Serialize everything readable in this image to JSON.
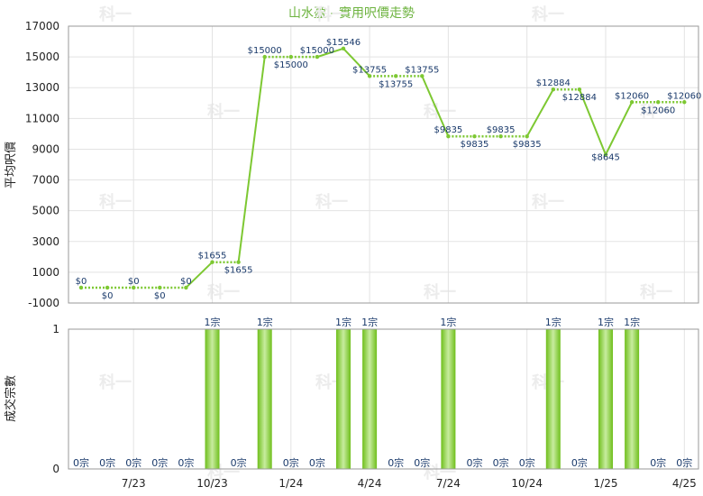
{
  "colors": {
    "line": "#7dc832",
    "bar": "#74c021",
    "bar_light": "#c8ec9f",
    "title": "#6db33f",
    "label": "#1a3a6b"
  },
  "chart_data": [
    {
      "type": "line",
      "title": "山水盈 - 實用呎價走勢",
      "ylabel": "平均呎價",
      "ylim": [
        -1000,
        17000
      ],
      "yticks": [
        -1000,
        1000,
        3000,
        5000,
        7000,
        9000,
        11000,
        13000,
        15000,
        17000
      ],
      "grid": true,
      "x": [
        "5/23",
        "6/23",
        "7/23",
        "8/23",
        "9/23",
        "10/23",
        "11/23",
        "12/23",
        "1/24",
        "2/24",
        "3/24",
        "4/24",
        "5/24",
        "6/24",
        "7/24",
        "8/24",
        "9/24",
        "10/24",
        "11/24",
        "12/24",
        "1/25",
        "2/25",
        "3/25",
        "4/25"
      ],
      "values": [
        0,
        0,
        0,
        0,
        0,
        1655,
        1655,
        15000,
        15000,
        15000,
        15546,
        13755,
        13755,
        13755,
        9835,
        9835,
        9835,
        9835,
        12884,
        12884,
        8645,
        12060,
        12060,
        12060
      ],
      "value_labels": [
        "$0",
        "$0",
        "$0",
        "$0",
        "$0",
        "$1655",
        "$1655",
        "$15000",
        "$15000",
        "$15000",
        "$15546",
        "$13755",
        "$13755",
        "$13755",
        "$9835",
        "$9835",
        "$9835",
        "$9835",
        "$12884",
        "$12884",
        "$8645",
        "$12060",
        "$12060",
        "$12060"
      ],
      "dotted_flat": [
        0,
        1,
        2,
        3,
        5,
        7,
        8,
        11,
        12,
        14,
        15,
        16,
        18,
        21,
        22
      ]
    },
    {
      "type": "bar",
      "ylabel": "成交宗數",
      "ylim": [
        0,
        1
      ],
      "yticks": [
        0,
        1
      ],
      "grid": true,
      "categories": [
        "5/23",
        "6/23",
        "7/23",
        "8/23",
        "9/23",
        "10/23",
        "11/23",
        "12/23",
        "1/24",
        "2/24",
        "3/24",
        "4/24",
        "5/24",
        "6/24",
        "7/24",
        "8/24",
        "9/24",
        "10/24",
        "11/24",
        "12/24",
        "1/25",
        "2/25",
        "3/25",
        "4/25"
      ],
      "values": [
        0,
        0,
        0,
        0,
        0,
        1,
        0,
        1,
        0,
        0,
        1,
        1,
        0,
        0,
        1,
        0,
        0,
        0,
        1,
        0,
        1,
        1,
        0,
        0
      ],
      "value_labels": [
        "0宗",
        "0宗",
        "0宗",
        "0宗",
        "0宗",
        "1宗",
        "0宗",
        "1宗",
        "0宗",
        "0宗",
        "1宗",
        "1宗",
        "0宗",
        "0宗",
        "1宗",
        "0宗",
        "0宗",
        "0宗",
        "1宗",
        "0宗",
        "1宗",
        "1宗",
        "0宗",
        "0宗"
      ],
      "xtick_labels": [
        {
          "index": 2,
          "label": "7/23"
        },
        {
          "index": 5,
          "label": "10/23"
        },
        {
          "index": 8,
          "label": "1/24"
        },
        {
          "index": 11,
          "label": "4/24"
        },
        {
          "index": 14,
          "label": "7/24"
        },
        {
          "index": 17,
          "label": "10/24"
        },
        {
          "index": 20,
          "label": "1/25"
        },
        {
          "index": 23,
          "label": "4/25"
        }
      ]
    }
  ],
  "watermark": "科一"
}
